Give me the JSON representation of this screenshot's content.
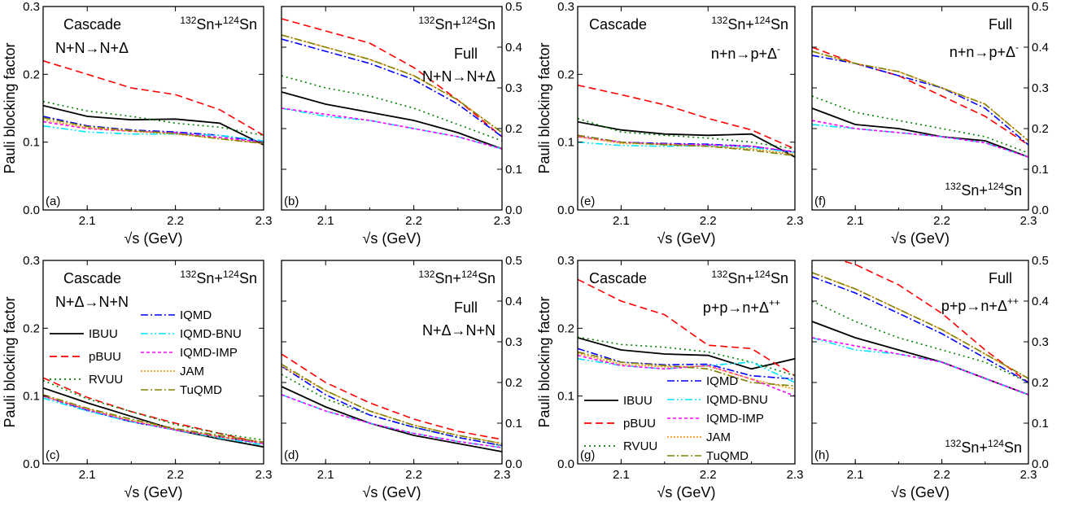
{
  "colors": {
    "IBUU": "#000000",
    "pBUU": "#ff0000",
    "RVUU": "#008000",
    "IQMD": "#0000ff",
    "IQMD-BNU": "#00e5ff",
    "IQMD-IMP": "#ff00ff",
    "JAM": "#ff8c00",
    "TuQMD": "#808000"
  },
  "dash": {
    "IBUU": "",
    "pBUU": "9,5",
    "RVUU": "2,4",
    "IQMD": "9,3,2,3",
    "IQMD-BNU": "9,3,2,3,2,3",
    "IQMD-IMP": "4,3",
    "JAM": "2,2",
    "TuQMD": "9,3,2,3"
  },
  "x_axis_label": "√s (GeV)",
  "y_axis_label": "Pauli blocking factor",
  "x_ticks": [
    "2.1",
    "2.2",
    "2.3"
  ],
  "y_ticks_left": [
    "0.0",
    "0.1",
    "0.2",
    "0.3"
  ],
  "y_ticks_right": [
    "0.0",
    "0.1",
    "0.2",
    "0.3",
    "0.4",
    "0.5"
  ],
  "legends": {
    "c": {
      "col1": [
        "IBUU",
        "pBUU",
        "RVUU"
      ],
      "col2": [
        "IQMD",
        "IQMD-BNU",
        "IQMD-IMP",
        "JAM",
        "TuQMD"
      ]
    },
    "g": {
      "col1": [
        "IBUU",
        "pBUU",
        "RVUU"
      ],
      "col2": [
        "IQMD",
        "IQMD-BNU",
        "IQMD-IMP",
        "JAM",
        "TuQMD"
      ]
    }
  },
  "chart_data": [
    {
      "panel": "a",
      "type": "line",
      "label": "(a)",
      "texts": [
        "Cascade",
        "N+N→N+Δ",
        "132Sn+124Sn"
      ],
      "xlim": [
        2.05,
        2.3
      ],
      "ylim": [
        0,
        0.3
      ],
      "x": [
        2.05,
        2.1,
        2.15,
        2.2,
        2.25,
        2.3
      ],
      "series": [
        {
          "name": "IBUU",
          "values": [
            0.154,
            0.138,
            0.133,
            0.134,
            0.128,
            0.096
          ]
        },
        {
          "name": "pBUU",
          "values": [
            0.22,
            0.2,
            0.18,
            0.17,
            0.148,
            0.11
          ]
        },
        {
          "name": "RVUU",
          "values": [
            0.16,
            0.146,
            0.138,
            0.128,
            0.122,
            0.11
          ]
        },
        {
          "name": "IQMD",
          "values": [
            0.138,
            0.124,
            0.118,
            0.115,
            0.11,
            0.1
          ]
        },
        {
          "name": "IQMD-BNU",
          "values": [
            0.124,
            0.115,
            0.112,
            0.112,
            0.11,
            0.102
          ]
        },
        {
          "name": "IQMD-IMP",
          "values": [
            0.13,
            0.12,
            0.116,
            0.114,
            0.107,
            0.1
          ]
        },
        {
          "name": "JAM",
          "values": [
            0.133,
            0.121,
            0.116,
            0.112,
            0.105,
            0.098
          ]
        },
        {
          "name": "TuQMD",
          "values": [
            0.136,
            0.123,
            0.117,
            0.113,
            0.105,
            0.098
          ]
        }
      ]
    },
    {
      "panel": "b",
      "type": "line",
      "label": "(b)",
      "texts": [
        "132Sn+124Sn",
        "Full",
        "N+N→N+Δ"
      ],
      "xlim": [
        2.05,
        2.3
      ],
      "ylim": [
        0,
        0.5
      ],
      "x": [
        2.05,
        2.1,
        2.15,
        2.2,
        2.25,
        2.3
      ],
      "series": [
        {
          "name": "IBUU",
          "values": [
            0.29,
            0.26,
            0.24,
            0.22,
            0.19,
            0.15
          ]
        },
        {
          "name": "pBUU",
          "values": [
            0.47,
            0.44,
            0.41,
            0.35,
            0.27,
            0.18
          ]
        },
        {
          "name": "RVUU",
          "values": [
            0.33,
            0.3,
            0.28,
            0.25,
            0.21,
            0.17
          ]
        },
        {
          "name": "IQMD",
          "values": [
            0.42,
            0.39,
            0.36,
            0.32,
            0.26,
            0.18
          ]
        },
        {
          "name": "IQMD-BNU",
          "values": [
            0.25,
            0.23,
            0.22,
            0.2,
            0.18,
            0.15
          ]
        },
        {
          "name": "IQMD-IMP",
          "values": [
            0.25,
            0.235,
            0.22,
            0.2,
            0.18,
            0.15
          ]
        },
        {
          "name": "JAM",
          "values": [
            0.43,
            0.4,
            0.37,
            0.33,
            0.27,
            0.19
          ]
        },
        {
          "name": "TuQMD",
          "values": [
            0.43,
            0.4,
            0.37,
            0.33,
            0.27,
            0.19
          ]
        }
      ]
    },
    {
      "panel": "e",
      "type": "line",
      "label": "(e)",
      "texts": [
        "Cascade",
        "132Sn+124Sn",
        "n+n→p+Δ-"
      ],
      "xlim": [
        2.05,
        2.3
      ],
      "ylim": [
        0,
        0.3
      ],
      "x": [
        2.05,
        2.1,
        2.15,
        2.2,
        2.25,
        2.3
      ],
      "series": [
        {
          "name": "IBUU",
          "values": [
            0.13,
            0.118,
            0.112,
            0.11,
            0.112,
            0.078
          ]
        },
        {
          "name": "pBUU",
          "values": [
            0.184,
            0.17,
            0.155,
            0.135,
            0.118,
            0.09
          ]
        },
        {
          "name": "RVUU",
          "values": [
            0.135,
            0.115,
            0.11,
            0.106,
            0.1,
            0.09
          ]
        },
        {
          "name": "IQMD",
          "values": [
            0.11,
            0.1,
            0.098,
            0.097,
            0.094,
            0.085
          ]
        },
        {
          "name": "IQMD-BNU",
          "values": [
            0.1,
            0.095,
            0.094,
            0.095,
            0.092,
            0.085
          ]
        },
        {
          "name": "IQMD-IMP",
          "values": [
            0.108,
            0.1,
            0.097,
            0.096,
            0.094,
            0.086
          ]
        },
        {
          "name": "JAM",
          "values": [
            0.108,
            0.098,
            0.097,
            0.094,
            0.09,
            0.082
          ]
        },
        {
          "name": "TuQMD",
          "values": [
            0.11,
            0.1,
            0.096,
            0.094,
            0.088,
            0.08
          ]
        }
      ]
    },
    {
      "panel": "f",
      "type": "line",
      "label": "(f)",
      "texts": [
        "Full",
        "n+n→p+Δ-",
        "132Sn+124Sn"
      ],
      "xlim": [
        2.05,
        2.3
      ],
      "ylim": [
        0,
        0.5
      ],
      "x": [
        2.05,
        2.1,
        2.15,
        2.2,
        2.25,
        2.3
      ],
      "series": [
        {
          "name": "IBUU",
          "values": [
            0.25,
            0.21,
            0.2,
            0.18,
            0.17,
            0.13
          ]
        },
        {
          "name": "pBUU",
          "values": [
            0.4,
            0.36,
            0.33,
            0.28,
            0.23,
            0.16
          ]
        },
        {
          "name": "RVUU",
          "values": [
            0.28,
            0.24,
            0.22,
            0.2,
            0.18,
            0.14
          ]
        },
        {
          "name": "IQMD",
          "values": [
            0.38,
            0.36,
            0.33,
            0.3,
            0.25,
            0.16
          ]
        },
        {
          "name": "IQMD-BNU",
          "values": [
            0.21,
            0.2,
            0.19,
            0.18,
            0.165,
            0.13
          ]
        },
        {
          "name": "IQMD-IMP",
          "values": [
            0.22,
            0.2,
            0.19,
            0.18,
            0.165,
            0.13
          ]
        },
        {
          "name": "JAM",
          "values": [
            0.39,
            0.36,
            0.34,
            0.3,
            0.26,
            0.17
          ]
        },
        {
          "name": "TuQMD",
          "values": [
            0.39,
            0.36,
            0.34,
            0.3,
            0.26,
            0.17
          ]
        }
      ]
    },
    {
      "panel": "c",
      "type": "line",
      "label": "(c)",
      "texts": [
        "Cascade",
        "N+Δ→N+N",
        "132Sn+124Sn"
      ],
      "xlim": [
        2.05,
        2.3
      ],
      "ylim": [
        0,
        0.3
      ],
      "x": [
        2.05,
        2.1,
        2.15,
        2.2,
        2.25,
        2.3
      ],
      "series": [
        {
          "name": "IBUU",
          "values": [
            0.112,
            0.09,
            0.07,
            0.05,
            0.037,
            0.025
          ]
        },
        {
          "name": "pBUU",
          "values": [
            0.127,
            0.098,
            0.077,
            0.06,
            0.045,
            0.03
          ]
        },
        {
          "name": "RVUU",
          "values": [
            0.123,
            0.096,
            0.077,
            0.058,
            0.045,
            0.035
          ]
        },
        {
          "name": "IQMD",
          "values": [
            0.1,
            0.079,
            0.062,
            0.05,
            0.04,
            0.03
          ]
        },
        {
          "name": "IQMD-BNU",
          "values": [
            0.097,
            0.078,
            0.062,
            0.05,
            0.038,
            0.028
          ]
        },
        {
          "name": "IQMD-IMP",
          "values": [
            0.1,
            0.08,
            0.063,
            0.05,
            0.04,
            0.03
          ]
        },
        {
          "name": "JAM",
          "values": [
            0.1,
            0.081,
            0.064,
            0.051,
            0.04,
            0.031
          ]
        },
        {
          "name": "TuQMD",
          "values": [
            0.102,
            0.082,
            0.066,
            0.052,
            0.042,
            0.032
          ]
        }
      ]
    },
    {
      "panel": "d",
      "type": "line",
      "label": "(d)",
      "texts": [
        "132Sn+124Sn",
        "Full",
        "N+Δ→N+N"
      ],
      "xlim": [
        2.05,
        2.3
      ],
      "ylim": [
        0,
        0.5
      ],
      "x": [
        2.05,
        2.1,
        2.15,
        2.2,
        2.25,
        2.3
      ],
      "series": [
        {
          "name": "IBUU",
          "values": [
            0.19,
            0.14,
            0.1,
            0.07,
            0.05,
            0.03
          ]
        },
        {
          "name": "pBUU",
          "values": [
            0.27,
            0.2,
            0.15,
            0.11,
            0.08,
            0.06
          ]
        },
        {
          "name": "RVUU",
          "values": [
            0.22,
            0.16,
            0.12,
            0.09,
            0.065,
            0.045
          ]
        },
        {
          "name": "IQMD",
          "values": [
            0.24,
            0.17,
            0.12,
            0.09,
            0.065,
            0.045
          ]
        },
        {
          "name": "IQMD-BNU",
          "values": [
            0.17,
            0.13,
            0.1,
            0.075,
            0.055,
            0.04
          ]
        },
        {
          "name": "IQMD-IMP",
          "values": [
            0.17,
            0.13,
            0.1,
            0.075,
            0.055,
            0.04
          ]
        },
        {
          "name": "JAM",
          "values": [
            0.24,
            0.18,
            0.13,
            0.095,
            0.07,
            0.05
          ]
        },
        {
          "name": "TuQMD",
          "values": [
            0.245,
            0.18,
            0.13,
            0.095,
            0.07,
            0.05
          ]
        }
      ]
    },
    {
      "panel": "g",
      "type": "line",
      "label": "(g)",
      "texts": [
        "Cascade",
        "132Sn+124Sn",
        "p+p→n+Δ++"
      ],
      "xlim": [
        2.05,
        2.3
      ],
      "ylim": [
        0,
        0.3
      ],
      "x": [
        2.05,
        2.1,
        2.15,
        2.2,
        2.25,
        2.3
      ],
      "series": [
        {
          "name": "IBUU",
          "values": [
            0.186,
            0.168,
            0.162,
            0.16,
            0.14,
            0.155
          ]
        },
        {
          "name": "pBUU",
          "values": [
            0.272,
            0.24,
            0.22,
            0.175,
            0.17,
            0.13
          ]
        },
        {
          "name": "RVUU",
          "values": [
            0.187,
            0.176,
            0.172,
            0.165,
            0.15,
            0.13
          ]
        },
        {
          "name": "IQMD",
          "values": [
            0.17,
            0.15,
            0.146,
            0.147,
            0.13,
            0.125
          ]
        },
        {
          "name": "IQMD-BNU",
          "values": [
            0.155,
            0.145,
            0.14,
            0.145,
            0.15,
            0.12
          ]
        },
        {
          "name": "IQMD-IMP",
          "values": [
            0.16,
            0.145,
            0.14,
            0.145,
            0.125,
            0.1
          ]
        },
        {
          "name": "JAM",
          "values": [
            0.163,
            0.147,
            0.143,
            0.144,
            0.125,
            0.11
          ]
        },
        {
          "name": "TuQMD",
          "values": [
            0.165,
            0.15,
            0.145,
            0.14,
            0.12,
            0.115
          ]
        }
      ]
    },
    {
      "panel": "h",
      "type": "line",
      "label": "(h)",
      "texts": [
        "Full",
        "p+p→n+Δ++",
        "132Sn+124Sn"
      ],
      "xlim": [
        2.05,
        2.3
      ],
      "ylim": [
        0,
        0.5
      ],
      "x": [
        2.05,
        2.1,
        2.15,
        2.2,
        2.25,
        2.3
      ],
      "series": [
        {
          "name": "IBUU",
          "values": [
            0.35,
            0.31,
            0.28,
            0.25,
            0.21,
            0.17
          ]
        },
        {
          "name": "pBUU",
          "values": [
            0.52,
            0.49,
            0.44,
            0.37,
            0.28,
            0.2
          ]
        },
        {
          "name": "RVUU",
          "values": [
            0.4,
            0.35,
            0.31,
            0.28,
            0.25,
            0.2
          ]
        },
        {
          "name": "IQMD",
          "values": [
            0.46,
            0.42,
            0.37,
            0.32,
            0.26,
            0.2
          ]
        },
        {
          "name": "IQMD-BNU",
          "values": [
            0.31,
            0.28,
            0.27,
            0.25,
            0.21,
            0.17
          ]
        },
        {
          "name": "IQMD-IMP",
          "values": [
            0.31,
            0.29,
            0.27,
            0.25,
            0.21,
            0.17
          ]
        },
        {
          "name": "JAM",
          "values": [
            0.47,
            0.43,
            0.38,
            0.33,
            0.27,
            0.21
          ]
        },
        {
          "name": "TuQMD",
          "values": [
            0.47,
            0.43,
            0.38,
            0.33,
            0.27,
            0.21
          ]
        }
      ]
    }
  ]
}
